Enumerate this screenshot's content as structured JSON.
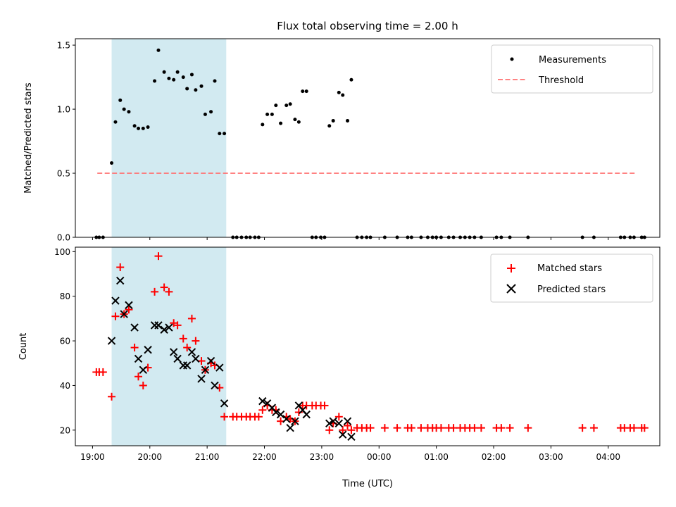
{
  "chart_data": {
    "title": "Flux total observing time = 2.00 h",
    "highlight_span": [
      "19:20",
      "21:20"
    ],
    "highlight_color": "#add8e6",
    "panels": [
      {
        "type": "scatter",
        "ylabel": "Matched/Predicted stars",
        "ylim": [
          0,
          1.55
        ],
        "yticks": [
          "0.0",
          "0.5",
          "1.0",
          "1.5"
        ],
        "ytick_values": [
          0,
          0.5,
          1.0,
          1.5
        ],
        "legend_position": "upper right",
        "threshold": {
          "name": "Threshold",
          "value": 0.5,
          "x_range": [
            "19:05",
            "04:30"
          ],
          "color": "#ff7070"
        },
        "series": [
          {
            "name": "Measurements",
            "color": "#000000",
            "marker": "dot",
            "points": [
              [
                "19:04",
                0
              ],
              [
                "19:07",
                0
              ],
              [
                "19:11",
                0
              ],
              [
                "19:20",
                0.58
              ],
              [
                "19:24",
                0.9
              ],
              [
                "19:29",
                1.07
              ],
              [
                "19:33",
                1.0
              ],
              [
                "19:38",
                0.98
              ],
              [
                "19:44",
                0.87
              ],
              [
                "19:48",
                0.85
              ],
              [
                "19:53",
                0.85
              ],
              [
                "19:58",
                0.86
              ],
              [
                "20:05",
                1.22
              ],
              [
                "20:09",
                1.46
              ],
              [
                "20:15",
                1.29
              ],
              [
                "20:20",
                1.24
              ],
              [
                "20:25",
                1.23
              ],
              [
                "20:29",
                1.29
              ],
              [
                "20:35",
                1.25
              ],
              [
                "20:39",
                1.16
              ],
              [
                "20:44",
                1.27
              ],
              [
                "20:48",
                1.15
              ],
              [
                "20:54",
                1.18
              ],
              [
                "20:58",
                0.96
              ],
              [
                "21:04",
                0.98
              ],
              [
                "21:08",
                1.22
              ],
              [
                "21:13",
                0.81
              ],
              [
                "21:18",
                0.81
              ],
              [
                "21:27",
                0
              ],
              [
                "21:31",
                0
              ],
              [
                "21:36",
                0
              ],
              [
                "21:41",
                0
              ],
              [
                "21:45",
                0
              ],
              [
                "21:50",
                0
              ],
              [
                "21:54",
                0
              ],
              [
                "21:58",
                0.88
              ],
              [
                "22:03",
                0.96
              ],
              [
                "22:08",
                0.96
              ],
              [
                "22:12",
                1.03
              ],
              [
                "22:17",
                0.89
              ],
              [
                "22:23",
                1.03
              ],
              [
                "22:27",
                1.04
              ],
              [
                "22:32",
                0.92
              ],
              [
                "22:36",
                0.9
              ],
              [
                "22:40",
                1.14
              ],
              [
                "22:44",
                1.14
              ],
              [
                "22:50",
                0
              ],
              [
                "22:54",
                0
              ],
              [
                "22:59",
                0
              ],
              [
                "23:03",
                0
              ],
              [
                "23:08",
                0.87
              ],
              [
                "23:12",
                0.91
              ],
              [
                "23:18",
                1.13
              ],
              [
                "23:22",
                1.11
              ],
              [
                "23:27",
                0.91
              ],
              [
                "23:31",
                1.23
              ],
              [
                "23:37",
                0
              ],
              [
                "23:42",
                0
              ],
              [
                "23:47",
                0
              ],
              [
                "23:51",
                0
              ],
              [
                "00:06",
                0
              ],
              [
                "00:19",
                0
              ],
              [
                "00:30",
                0
              ],
              [
                "00:34",
                0
              ],
              [
                "00:44",
                0
              ],
              [
                "00:51",
                0
              ],
              [
                "00:56",
                0
              ],
              [
                "01:00",
                0
              ],
              [
                "01:05",
                0
              ],
              [
                "01:13",
                0
              ],
              [
                "01:18",
                0
              ],
              [
                "01:25",
                0
              ],
              [
                "01:30",
                0
              ],
              [
                "01:35",
                0
              ],
              [
                "01:40",
                0
              ],
              [
                "01:47",
                0
              ],
              [
                "02:03",
                0
              ],
              [
                "02:08",
                0
              ],
              [
                "02:17",
                0
              ],
              [
                "02:36",
                0
              ],
              [
                "03:33",
                0
              ],
              [
                "03:45",
                0
              ],
              [
                "04:13",
                0
              ],
              [
                "04:17",
                0
              ],
              [
                "04:23",
                0
              ],
              [
                "04:27",
                0
              ],
              [
                "04:35",
                0
              ],
              [
                "04:38",
                0
              ]
            ]
          }
        ]
      },
      {
        "type": "scatter",
        "xlabel": "Time (UTC)",
        "ylabel": "Count",
        "ylim": [
          13,
          102
        ],
        "yticks": [
          "20",
          "40",
          "60",
          "80",
          "100"
        ],
        "ytick_values": [
          20,
          40,
          60,
          80,
          100
        ],
        "xticks": [
          "19:00",
          "20:00",
          "21:00",
          "22:00",
          "23:00",
          "00:00",
          "01:00",
          "02:00",
          "03:00",
          "04:00"
        ],
        "legend_position": "upper right",
        "series": [
          {
            "name": "Matched stars",
            "color": "#ff0000",
            "marker": "plus",
            "points": [
              [
                "19:04",
                46
              ],
              [
                "19:07",
                46
              ],
              [
                "19:11",
                46
              ],
              [
                "19:20",
                35
              ],
              [
                "19:24",
                71
              ],
              [
                "19:29",
                93
              ],
              [
                "19:33",
                72
              ],
              [
                "19:38",
                74
              ],
              [
                "19:44",
                57
              ],
              [
                "19:48",
                44
              ],
              [
                "19:53",
                40
              ],
              [
                "19:58",
                48
              ],
              [
                "20:05",
                82
              ],
              [
                "20:09",
                98
              ],
              [
                "20:15",
                84
              ],
              [
                "20:20",
                82
              ],
              [
                "20:25",
                68
              ],
              [
                "20:29",
                67
              ],
              [
                "20:35",
                61
              ],
              [
                "20:39",
                57
              ],
              [
                "20:44",
                70
              ],
              [
                "20:48",
                60
              ],
              [
                "20:54",
                51
              ],
              [
                "20:58",
                47
              ],
              [
                "21:04",
                50
              ],
              [
                "21:08",
                49
              ],
              [
                "21:13",
                39
              ],
              [
                "21:18",
                26
              ],
              [
                "21:27",
                26
              ],
              [
                "21:31",
                26
              ],
              [
                "21:36",
                26
              ],
              [
                "21:41",
                26
              ],
              [
                "21:45",
                26
              ],
              [
                "21:50",
                26
              ],
              [
                "21:54",
                26
              ],
              [
                "21:58",
                29
              ],
              [
                "22:03",
                31
              ],
              [
                "22:08",
                29
              ],
              [
                "22:12",
                29
              ],
              [
                "22:17",
                24
              ],
              [
                "22:23",
                26
              ],
              [
                "22:27",
                25
              ],
              [
                "22:32",
                24
              ],
              [
                "22:36",
                28
              ],
              [
                "22:40",
                31
              ],
              [
                "22:44",
                31
              ],
              [
                "22:50",
                31
              ],
              [
                "22:54",
                31
              ],
              [
                "22:59",
                31
              ],
              [
                "23:03",
                31
              ],
              [
                "23:08",
                20
              ],
              [
                "23:12",
                23
              ],
              [
                "23:18",
                26
              ],
              [
                "23:22",
                20
              ],
              [
                "23:27",
                22
              ],
              [
                "23:31",
                20
              ],
              [
                "23:37",
                21
              ],
              [
                "23:42",
                21
              ],
              [
                "23:47",
                21
              ],
              [
                "23:51",
                21
              ],
              [
                "00:06",
                21
              ],
              [
                "00:19",
                21
              ],
              [
                "00:30",
                21
              ],
              [
                "00:34",
                21
              ],
              [
                "00:44",
                21
              ],
              [
                "00:51",
                21
              ],
              [
                "00:56",
                21
              ],
              [
                "01:00",
                21
              ],
              [
                "01:05",
                21
              ],
              [
                "01:13",
                21
              ],
              [
                "01:18",
                21
              ],
              [
                "01:25",
                21
              ],
              [
                "01:30",
                21
              ],
              [
                "01:35",
                21
              ],
              [
                "01:40",
                21
              ],
              [
                "01:47",
                21
              ],
              [
                "02:03",
                21
              ],
              [
                "02:08",
                21
              ],
              [
                "02:17",
                21
              ],
              [
                "02:36",
                21
              ],
              [
                "03:33",
                21
              ],
              [
                "03:45",
                21
              ],
              [
                "04:13",
                21
              ],
              [
                "04:17",
                21
              ],
              [
                "04:23",
                21
              ],
              [
                "04:27",
                21
              ],
              [
                "04:35",
                21
              ],
              [
                "04:38",
                21
              ]
            ]
          },
          {
            "name": "Predicted stars",
            "color": "#000000",
            "marker": "x",
            "points": [
              [
                "19:20",
                60
              ],
              [
                "19:24",
                78
              ],
              [
                "19:29",
                87
              ],
              [
                "19:33",
                72
              ],
              [
                "19:38",
                76
              ],
              [
                "19:44",
                66
              ],
              [
                "19:48",
                52
              ],
              [
                "19:53",
                47
              ],
              [
                "19:58",
                56
              ],
              [
                "20:05",
                67
              ],
              [
                "20:09",
                67
              ],
              [
                "20:15",
                65
              ],
              [
                "20:20",
                66
              ],
              [
                "20:25",
                55
              ],
              [
                "20:29",
                52
              ],
              [
                "20:35",
                49
              ],
              [
                "20:39",
                49
              ],
              [
                "20:44",
                55
              ],
              [
                "20:48",
                52
              ],
              [
                "20:54",
                43
              ],
              [
                "20:58",
                47
              ],
              [
                "21:04",
                51
              ],
              [
                "21:08",
                40
              ],
              [
                "21:13",
                48
              ],
              [
                "21:18",
                32
              ],
              [
                "21:58",
                33
              ],
              [
                "22:03",
                32
              ],
              [
                "22:08",
                30
              ],
              [
                "22:12",
                28
              ],
              [
                "22:17",
                27
              ],
              [
                "22:23",
                25
              ],
              [
                "22:27",
                21
              ],
              [
                "22:32",
                24
              ],
              [
                "22:36",
                31
              ],
              [
                "22:40",
                29
              ],
              [
                "22:44",
                27
              ],
              [
                "23:08",
                23
              ],
              [
                "23:12",
                24
              ],
              [
                "23:18",
                23
              ],
              [
                "23:22",
                18
              ],
              [
                "23:27",
                24
              ],
              [
                "23:31",
                17
              ]
            ]
          }
        ]
      }
    ]
  }
}
